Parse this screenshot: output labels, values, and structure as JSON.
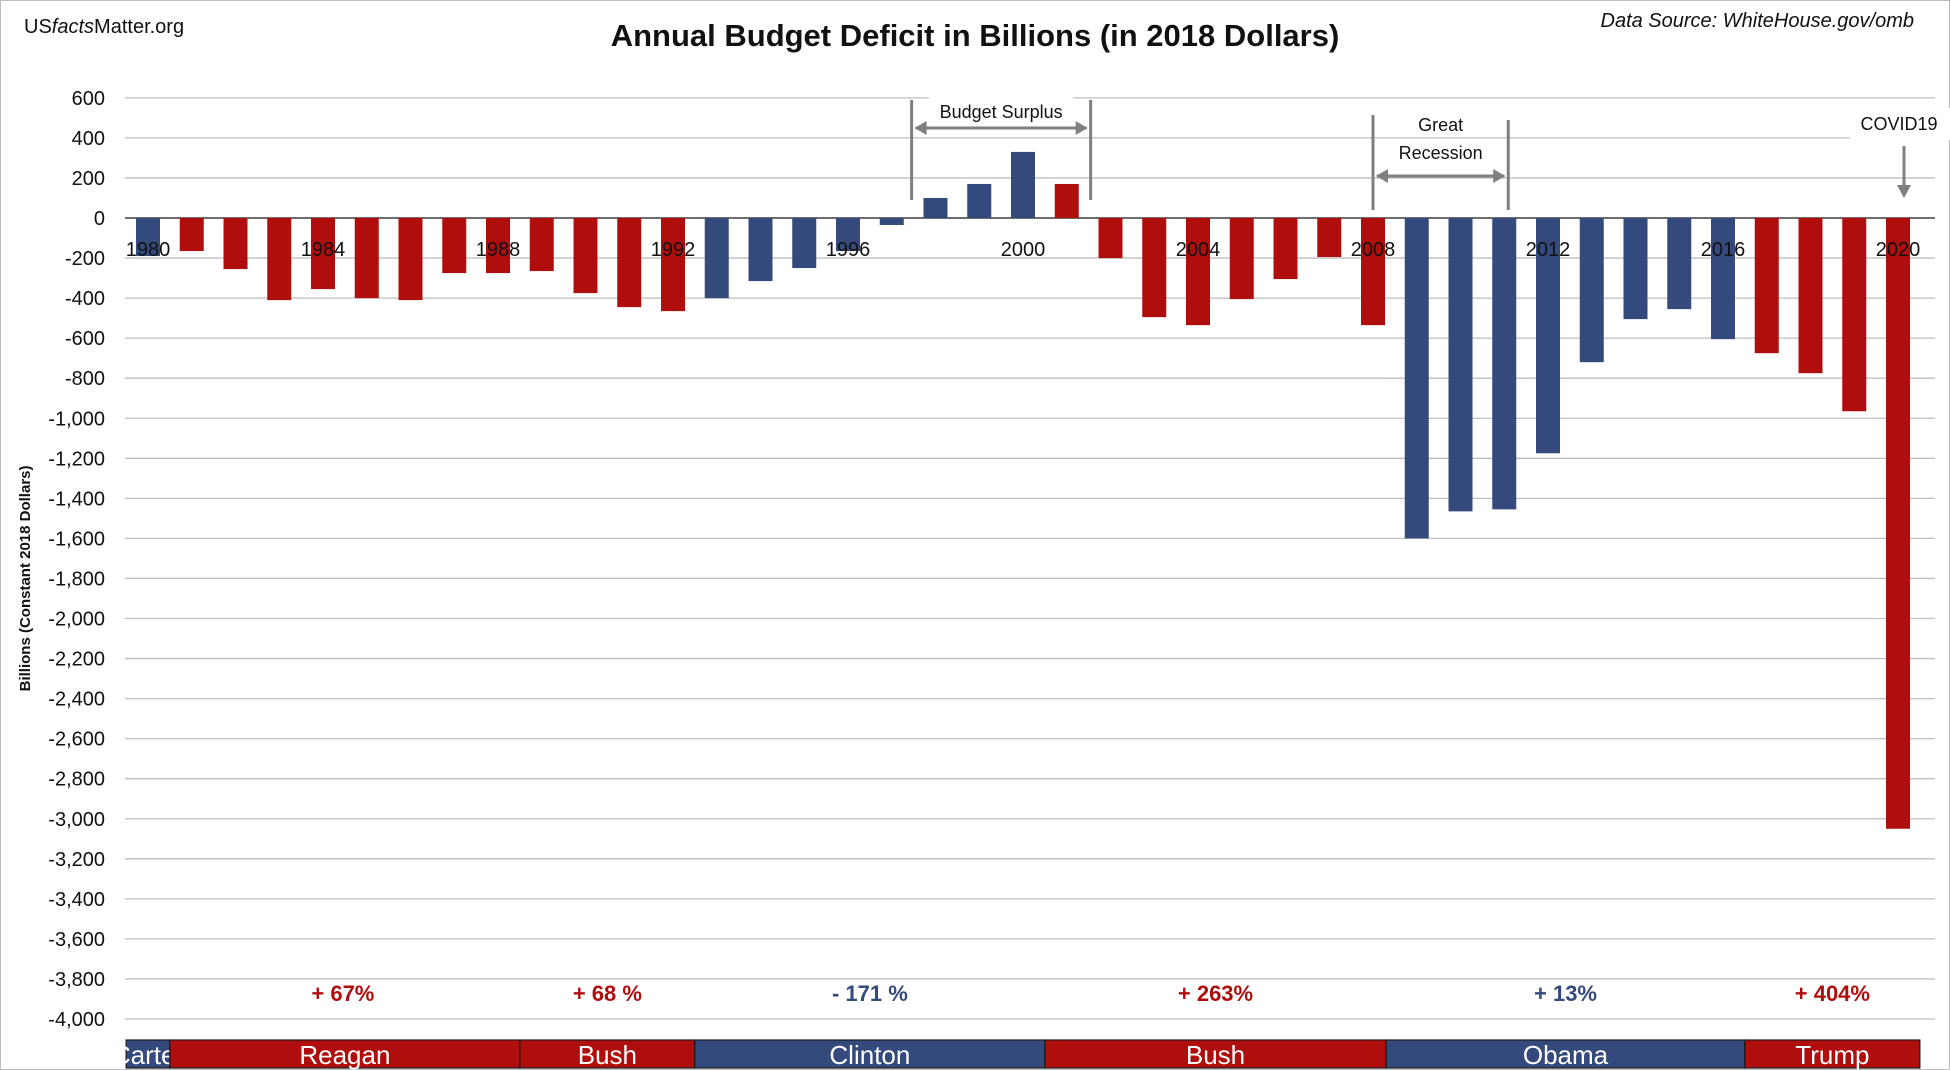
{
  "brand": {
    "pre": "US",
    "mid": "facts",
    "post": "Matter.org"
  },
  "source": "Data Source: WhiteHouse.gov/omb",
  "chart_data": {
    "type": "bar",
    "title": "Annual Budget Deficit in Billions (in 2018 Dollars)",
    "ylabel": "Billions (Constant 2018 Dollars)",
    "xlabel": "",
    "ylim": [
      -4000,
      600
    ],
    "yticks": [
      600,
      400,
      200,
      0,
      -200,
      -400,
      -600,
      -800,
      -1000,
      -1200,
      -1400,
      -1600,
      -1800,
      -2000,
      -2200,
      -2400,
      -2600,
      -2800,
      -3000,
      -3200,
      -3400,
      -3600,
      -3800,
      -4000
    ],
    "ytick_labels": [
      "600",
      "400",
      "200",
      "0",
      "-200",
      "-400",
      "-600",
      "-800",
      "-1,000",
      "-1,200",
      "-1,400",
      "-1,600",
      "-1,800",
      "-2,000",
      "-2,200",
      "-2,400",
      "-2,600",
      "-2,800",
      "-3,000",
      "-3,200",
      "-3,400",
      "-3,600",
      "-3,800",
      "-4,000"
    ],
    "grid": true,
    "xtick_labels": [
      {
        "year": 1980,
        "label": "1980"
      },
      {
        "year": 1984,
        "label": "1984"
      },
      {
        "year": 1988,
        "label": "1988"
      },
      {
        "year": 1992,
        "label": "1992"
      },
      {
        "year": 1996,
        "label": "1996"
      },
      {
        "year": 2000,
        "label": "2000"
      },
      {
        "year": 2004,
        "label": "2004"
      },
      {
        "year": 2008,
        "label": "2008"
      },
      {
        "year": 2012,
        "label": "2012"
      },
      {
        "year": 2016,
        "label": "2016"
      },
      {
        "year": 2020,
        "label": "2020"
      }
    ],
    "colors": {
      "democrat": "#34497c",
      "republican": "#b00d0d",
      "grid": "#bfbfbf",
      "axis": "#6e6e6e",
      "annotation": "#7f7f7f"
    },
    "years": [
      1980,
      1981,
      1982,
      1983,
      1984,
      1985,
      1986,
      1987,
      1988,
      1989,
      1990,
      1991,
      1992,
      1993,
      1994,
      1995,
      1996,
      1997,
      1998,
      1999,
      2000,
      2001,
      2002,
      2003,
      2004,
      2005,
      2006,
      2007,
      2008,
      2009,
      2010,
      2011,
      2012,
      2013,
      2014,
      2015,
      2016,
      2017,
      2018,
      2019,
      2020
    ],
    "values": [
      -190,
      -165,
      -255,
      -410,
      -355,
      -400,
      -410,
      -275,
      -275,
      -265,
      -375,
      -445,
      -465,
      -400,
      -315,
      -250,
      -165,
      -35,
      100,
      170,
      330,
      170,
      -200,
      -495,
      -535,
      -405,
      -305,
      -195,
      -535,
      -1600,
      -1465,
      -1455,
      -1175,
      -720,
      -505,
      -455,
      -605,
      -675,
      -775,
      -965,
      -3050
    ],
    "parties": [
      "D",
      "R",
      "R",
      "R",
      "R",
      "R",
      "R",
      "R",
      "R",
      "R",
      "R",
      "R",
      "R",
      "D",
      "D",
      "D",
      "D",
      "D",
      "D",
      "D",
      "D",
      "R",
      "R",
      "R",
      "R",
      "R",
      "R",
      "R",
      "R",
      "D",
      "D",
      "D",
      "D",
      "D",
      "D",
      "D",
      "D",
      "R",
      "R",
      "R",
      "R"
    ],
    "annotations": [
      {
        "type": "range",
        "label": "Budget Surplus",
        "start": 1997.5,
        "end": 2001.5
      },
      {
        "type": "range",
        "label": "Great Recession",
        "label_lines": [
          "Great",
          "Recession"
        ],
        "start": 2008,
        "end": 2011
      },
      {
        "type": "arrow",
        "label": "COVID19",
        "at": 2020
      }
    ],
    "presidents": [
      {
        "name": "Carter",
        "party": "D",
        "start": 1979.5,
        "end": 1980.5,
        "change": ""
      },
      {
        "name": "Reagan",
        "party": "R",
        "start": 1980.5,
        "end": 1988.5,
        "change": "+ 67%"
      },
      {
        "name": "Bush",
        "party": "R",
        "start": 1988.5,
        "end": 1992.5,
        "change": "+ 68 %"
      },
      {
        "name": "Clinton",
        "party": "D",
        "start": 1992.5,
        "end": 2000.5,
        "change": "- 171 %"
      },
      {
        "name": "Bush",
        "party": "R",
        "start": 2000.5,
        "end": 2008.3,
        "change": "+ 263%"
      },
      {
        "name": "Obama",
        "party": "D",
        "start": 2008.3,
        "end": 2016.5,
        "change": "+ 13%"
      },
      {
        "name": "Trump",
        "party": "R",
        "start": 2016.5,
        "end": 2020.5,
        "change": "+ 404%"
      }
    ]
  }
}
